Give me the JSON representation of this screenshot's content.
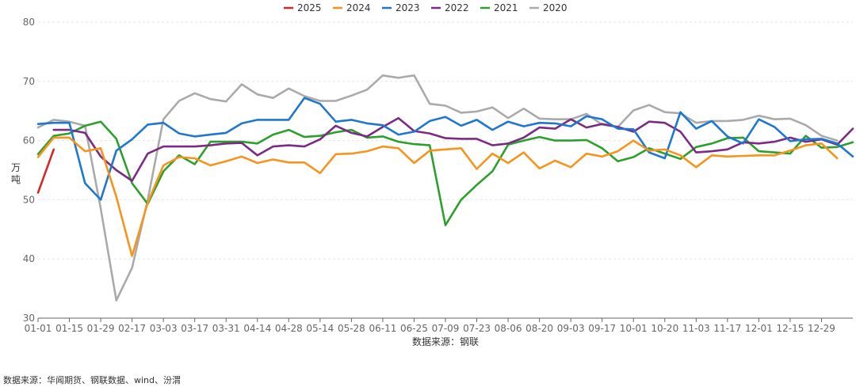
{
  "chart_data": {
    "type": "line",
    "title": "",
    "xlabel": "数据来源：钢联",
    "ylabel": "万\n吨",
    "ylim": [
      30,
      80
    ],
    "yticks": [
      30,
      40,
      50,
      60,
      70,
      80
    ],
    "grid": true,
    "legend_position": "top-center",
    "x_tick_labels": [
      "01-01",
      "01-15",
      "01-29",
      "02-17",
      "03-03",
      "03-17",
      "03-31",
      "04-14",
      "04-28",
      "05-14",
      "05-28",
      "06-11",
      "06-25",
      "07-09",
      "07-23",
      "08-06",
      "08-20",
      "09-03",
      "09-17",
      "10-01",
      "10-20",
      "11-03",
      "11-17",
      "12-01",
      "12-15",
      "12-29"
    ],
    "series": [
      {
        "name": "2025",
        "color": "#d62728",
        "values": [
          51.2,
          58.5
        ]
      },
      {
        "name": "2024",
        "color": "#f7941d",
        "values": [
          57.2,
          60.5,
          60.5,
          58.2,
          58.7,
          50.5,
          40.5,
          49.5,
          55.8,
          57.2,
          57.0,
          55.8,
          56.5,
          57.3,
          56.2,
          56.8,
          56.3,
          56.3,
          54.5,
          57.7,
          57.8,
          58.2,
          59.0,
          58.7,
          56.2,
          58.3,
          58.5,
          58.7,
          55.2,
          57.8,
          56.2,
          58.0,
          55.3,
          56.6,
          55.5,
          57.8,
          57.3,
          58.2,
          60.0,
          58.3,
          58.5,
          57.5,
          55.5,
          57.5,
          57.3,
          57.4,
          57.5,
          57.5,
          58.3,
          59.2,
          59.5,
          57.0
        ]
      },
      {
        "name": "2023",
        "color": "#1f77d0",
        "values": [
          62.8,
          63.0,
          63.0,
          52.8,
          50.0,
          58.3,
          60.2,
          62.7,
          63.0,
          61.2,
          60.7,
          61.0,
          61.3,
          62.9,
          63.5,
          63.5,
          63.5,
          67.2,
          66.2,
          63.2,
          63.5,
          62.9,
          62.6,
          61.0,
          61.5,
          63.3,
          64.0,
          62.5,
          63.5,
          61.8,
          63.2,
          62.4,
          63.0,
          62.9,
          62.4,
          64.1,
          63.6,
          62.0,
          61.9,
          58.0,
          57.0,
          64.8,
          62.0,
          63.3,
          60.7,
          59.5,
          63.6,
          62.3,
          59.9,
          60.2,
          60.3,
          59.5,
          57.3
        ]
      },
      {
        "name": "2022",
        "color": "#7b2b82",
        "values": [
          null,
          61.8,
          61.8,
          61.3,
          57.3,
          55.0,
          53.2,
          57.8,
          59.0,
          59.0,
          59.0,
          59.2,
          59.5,
          59.6,
          57.5,
          59.0,
          59.2,
          59.0,
          60.2,
          62.5,
          61.3,
          60.7,
          62.3,
          63.8,
          61.6,
          61.2,
          60.4,
          60.3,
          60.3,
          59.2,
          59.5,
          60.5,
          62.2,
          62.0,
          63.6,
          62.2,
          62.8,
          62.3,
          61.5,
          63.2,
          63.0,
          61.5,
          58.0,
          58.2,
          58.5,
          59.7,
          59.5,
          59.8,
          60.5,
          59.8,
          60.2,
          59.3,
          62.0
        ]
      },
      {
        "name": "2021",
        "color": "#2ca02c",
        "values": [
          57.7,
          60.8,
          61.2,
          62.5,
          63.2,
          60.3,
          52.8,
          49.3,
          54.8,
          57.5,
          56.0,
          59.8,
          59.8,
          59.8,
          59.5,
          61.0,
          61.8,
          60.6,
          60.8,
          61.4,
          61.8,
          60.5,
          60.7,
          59.8,
          59.4,
          59.2,
          45.7,
          50.0,
          52.5,
          54.8,
          59.3,
          60.0,
          60.6,
          60.0,
          60.0,
          60.1,
          58.7,
          56.5,
          57.2,
          58.7,
          57.8,
          56.9,
          58.9,
          59.5,
          60.4,
          60.5,
          58.2,
          58.0,
          57.8,
          60.8,
          58.8,
          58.9,
          59.7
        ]
      },
      {
        "name": "2020",
        "color": "#aaaaaa",
        "values": [
          62.2,
          63.5,
          63.2,
          62.5,
          48.5,
          33.0,
          38.5,
          50.0,
          63.6,
          66.7,
          68.0,
          67.0,
          66.6,
          69.5,
          67.8,
          67.2,
          68.8,
          67.5,
          66.7,
          66.7,
          67.6,
          68.6,
          71.0,
          70.6,
          71.0,
          66.2,
          65.9,
          64.7,
          64.9,
          65.6,
          63.8,
          65.4,
          63.7,
          63.6,
          63.6,
          64.5,
          62.7,
          62.3,
          65.1,
          66.0,
          64.8,
          64.6,
          63.0,
          63.3,
          63.3,
          63.5,
          64.2,
          63.6,
          63.7,
          62.6,
          60.8,
          60.0
        ]
      }
    ]
  },
  "footer": {
    "source": "数据来源：华闻期货、钢联数据、wind、汾渭"
  }
}
